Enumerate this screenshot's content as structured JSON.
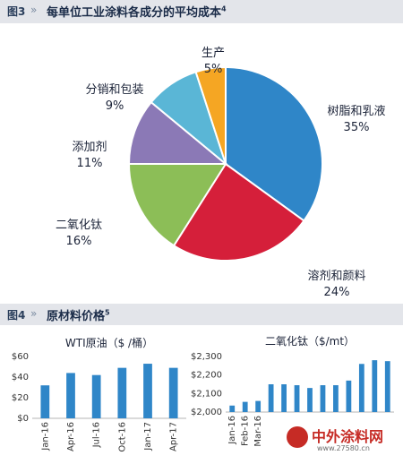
{
  "figure3": {
    "number": "图3",
    "title": "每单位工业涂料各成分的平均成本",
    "superscript": "4"
  },
  "figure4": {
    "number": "图4",
    "title": "原材料价格",
    "superscript": "5"
  },
  "arrow": "»",
  "watermark": {
    "brand": "中外涂料网",
    "url": "www.27580.cn"
  },
  "chart_data": [
    {
      "type": "pie",
      "title": "每单位工业涂料各成分的平均成本",
      "slices": [
        {
          "label": "树脂和乳液",
          "value": 35,
          "value_label": "35%",
          "color": "#2f86c8"
        },
        {
          "label": "溶剂和颜料",
          "value": 24,
          "value_label": "24%",
          "color": "#d51f3a"
        },
        {
          "label": "二氧化钛",
          "value": 16,
          "value_label": "16%",
          "color": "#8cbe57"
        },
        {
          "label": "添加剂",
          "value": 11,
          "value_label": "11%",
          "color": "#8b79b6"
        },
        {
          "label": "分销和包装",
          "value": 9,
          "value_label": "9%",
          "color": "#5ab6d6"
        },
        {
          "label": "生产",
          "value": 5,
          "value_label": "5%",
          "color": "#f5a623"
        }
      ],
      "start_angle_deg": 0,
      "direction": "clockwise"
    },
    {
      "type": "bar",
      "title": "WTI原油（$ /桶）",
      "categories": [
        "Jan-16",
        "Apr-16",
        "Jul-16",
        "Oct-16",
        "Jan-17",
        "Apr-17"
      ],
      "values": [
        32,
        44,
        42,
        49,
        53,
        49
      ],
      "ylim": [
        0,
        60
      ],
      "yticks": [
        0,
        20,
        40,
        60
      ],
      "ytick_labels": [
        "$0",
        "$20",
        "$40",
        "$60"
      ],
      "color": "#2f86c8",
      "grid": false
    },
    {
      "type": "bar",
      "title": "二氧化钛（$/mt）",
      "categories": [
        "Jan-16",
        "Feb-16",
        "Mar-16",
        "",
        "",
        "",
        "",
        "",
        "",
        "",
        "",
        "",
        ""
      ],
      "values": [
        2035,
        2055,
        2060,
        2150,
        2150,
        2145,
        2130,
        2145,
        2145,
        2170,
        2260,
        2280,
        2275
      ],
      "ylim": [
        2000,
        2300
      ],
      "yticks": [
        2000,
        2100,
        2200,
        2300
      ],
      "ytick_labels": [
        "$2,000",
        "$2,100",
        "$2,200",
        "$2,300"
      ],
      "color": "#2f86c8",
      "grid": false
    }
  ]
}
